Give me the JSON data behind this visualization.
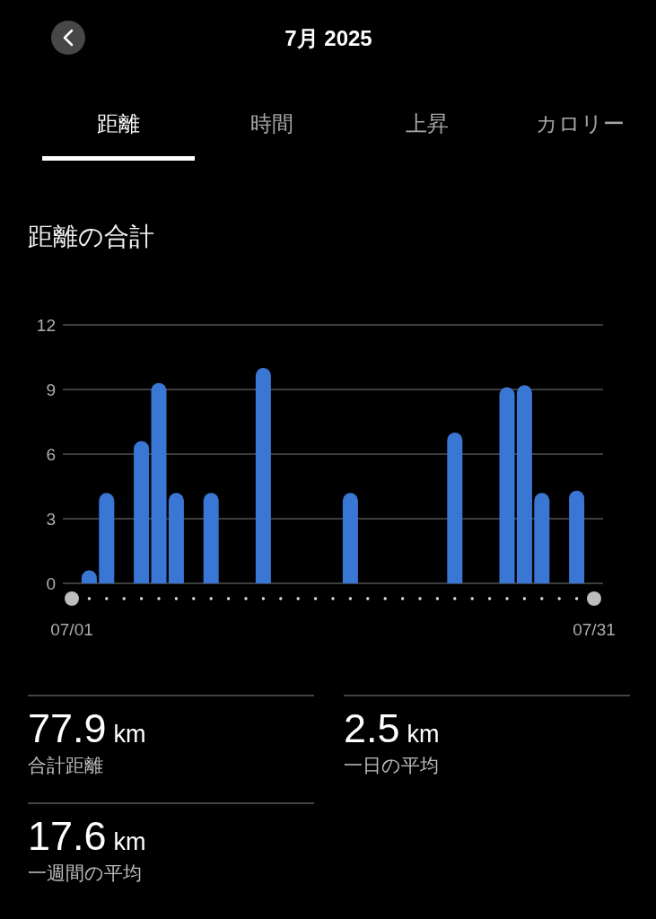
{
  "chart_data": {
    "type": "bar",
    "title": "7月 2025",
    "subtitle": "距離の合計",
    "annotations": [
      "距離",
      "時間",
      "上昇",
      "カロリー",
      "77.9",
      "km",
      "合計距離",
      "2.5",
      "km",
      "一日の平均",
      "17.6",
      "km",
      "一週間の平均"
    ],
    "categories": [
      "07/01",
      null,
      null,
      null,
      null,
      null,
      null,
      null,
      null,
      null,
      null,
      null,
      null,
      null,
      null,
      null,
      null,
      null,
      null,
      null,
      null,
      null,
      null,
      null,
      null,
      null,
      null,
      null,
      null,
      null,
      "07/31"
    ],
    "values": [
      0,
      0.6,
      4.2,
      0,
      6.6,
      9.3,
      4.2,
      0,
      4.2,
      0,
      0,
      10.0,
      0,
      0,
      0,
      0,
      4.2,
      0,
      0,
      0,
      0,
      0,
      7.0,
      0,
      0,
      9.1,
      9.2,
      4.2,
      0,
      4.3,
      0
    ],
    "color": "#3a77d5",
    "ylim": [
      0,
      12
    ],
    "yticks": [
      0,
      3,
      6,
      9,
      12
    ],
    "grid": "y"
  }
}
